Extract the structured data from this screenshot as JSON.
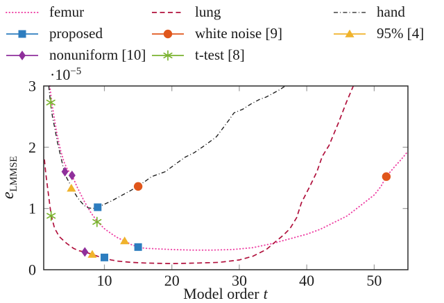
{
  "figure": {
    "kind": "error-vs-model-order-plot"
  },
  "chart_data": {
    "type": "line",
    "xlabel_main": "Model order",
    "xlabel_var": "t",
    "ylabel_var": "e",
    "ylabel_sub": "LMMSE",
    "y_exponent_prefix": "·10",
    "y_exponent_sup": "−5",
    "xlim": [
      1,
      55
    ],
    "ylim": [
      0,
      3
    ],
    "x_ticks": [
      10,
      20,
      30,
      40,
      50
    ],
    "y_ticks": [
      0,
      1,
      2,
      3
    ],
    "grid": false,
    "legend_position": "top-outside",
    "legend_order": [
      "femur",
      "proposed",
      "nonuniform",
      "lung",
      "white_noise",
      "t_test",
      "hand",
      "ninety_five"
    ],
    "series": [
      {
        "key": "femur",
        "label": "femur",
        "color": "#ee3da2",
        "style": "dotted",
        "marker": null,
        "points": [
          [
            1.9,
            3.0
          ],
          [
            2.2,
            2.72
          ],
          [
            2.6,
            2.45
          ],
          [
            3.0,
            2.2
          ],
          [
            3.5,
            1.95
          ],
          [
            4.0,
            1.76
          ],
          [
            4.5,
            1.64
          ],
          [
            5.2,
            1.54
          ],
          [
            6,
            1.34
          ],
          [
            7,
            1.12
          ],
          [
            8,
            0.93
          ],
          [
            9,
            0.78
          ],
          [
            10,
            0.67
          ],
          [
            11,
            0.59
          ],
          [
            12,
            0.52
          ],
          [
            13,
            0.47
          ],
          [
            14,
            0.41
          ],
          [
            15,
            0.37
          ],
          [
            16,
            0.35
          ],
          [
            18,
            0.34
          ],
          [
            20,
            0.33
          ],
          [
            23,
            0.32
          ],
          [
            26,
            0.32
          ],
          [
            29,
            0.33
          ],
          [
            32,
            0.36
          ],
          [
            35,
            0.43
          ],
          [
            37,
            0.49
          ],
          [
            40,
            0.58
          ],
          [
            42,
            0.66
          ],
          [
            44,
            0.77
          ],
          [
            46,
            0.88
          ],
          [
            48,
            1.05
          ],
          [
            50,
            1.22
          ],
          [
            51,
            1.36
          ],
          [
            51.8,
            1.52
          ],
          [
            53,
            1.68
          ],
          [
            54,
            1.8
          ],
          [
            54.9,
            1.92
          ]
        ]
      },
      {
        "key": "lung",
        "label": "lung",
        "color": "#b0103c",
        "style": "dashed",
        "marker": null,
        "points": [
          [
            1.1,
            1.8
          ],
          [
            1.3,
            1.58
          ],
          [
            1.6,
            1.32
          ],
          [
            1.85,
            1.1
          ],
          [
            2.1,
            0.89
          ],
          [
            2.6,
            0.68
          ],
          [
            3.3,
            0.54
          ],
          [
            4.4,
            0.43
          ],
          [
            5.4,
            0.35
          ],
          [
            6.2,
            0.31
          ],
          [
            7.1,
            0.29
          ],
          [
            8.2,
            0.25
          ],
          [
            9,
            0.22
          ],
          [
            10,
            0.19
          ],
          [
            11,
            0.16
          ],
          [
            12,
            0.14
          ],
          [
            14,
            0.12
          ],
          [
            16,
            0.11
          ],
          [
            20,
            0.1
          ],
          [
            24,
            0.11
          ],
          [
            27,
            0.12
          ],
          [
            30,
            0.16
          ],
          [
            32,
            0.22
          ],
          [
            34,
            0.33
          ],
          [
            35.5,
            0.47
          ],
          [
            36.5,
            0.56
          ],
          [
            37.5,
            0.67
          ],
          [
            38.5,
            0.85
          ],
          [
            39.2,
            1.09
          ],
          [
            40.5,
            1.37
          ],
          [
            41.5,
            1.6
          ],
          [
            42.3,
            1.85
          ],
          [
            43.3,
            2.03
          ],
          [
            44.7,
            2.4
          ],
          [
            45.9,
            2.74
          ],
          [
            46.9,
            3.0
          ]
        ]
      },
      {
        "key": "hand",
        "label": "hand",
        "color": "#1c1c1c",
        "style": "dashdot",
        "marker": null,
        "points": [
          [
            1.75,
            3.0
          ],
          [
            2.0,
            2.73
          ],
          [
            2.3,
            2.5
          ],
          [
            2.7,
            2.28
          ],
          [
            3.0,
            2.1
          ],
          [
            3.5,
            1.86
          ],
          [
            4.0,
            1.62
          ],
          [
            4.4,
            1.5
          ],
          [
            5.0,
            1.38
          ],
          [
            5.5,
            1.27
          ],
          [
            6.0,
            1.18
          ],
          [
            6.5,
            1.11
          ],
          [
            7.0,
            1.05
          ],
          [
            7.6,
            1.01
          ],
          [
            8.3,
            1.0
          ],
          [
            9.0,
            1.02
          ],
          [
            10,
            1.07
          ],
          [
            11,
            1.12
          ],
          [
            12,
            1.18
          ],
          [
            13,
            1.24
          ],
          [
            14,
            1.3
          ],
          [
            15,
            1.37
          ],
          [
            16,
            1.44
          ],
          [
            17,
            1.52
          ],
          [
            18,
            1.56
          ],
          [
            19,
            1.6
          ],
          [
            20,
            1.68
          ],
          [
            21,
            1.76
          ],
          [
            22,
            1.84
          ],
          [
            23.3,
            1.91
          ],
          [
            24.5,
            2.0
          ],
          [
            25.5,
            2.08
          ],
          [
            26.6,
            2.17
          ],
          [
            27.5,
            2.3
          ],
          [
            28.5,
            2.45
          ],
          [
            29.2,
            2.56
          ],
          [
            30.5,
            2.62
          ],
          [
            31.8,
            2.71
          ],
          [
            33,
            2.78
          ],
          [
            34,
            2.82
          ],
          [
            35,
            2.88
          ],
          [
            36,
            2.94
          ],
          [
            36.8,
            3.0
          ]
        ]
      },
      {
        "key": "proposed",
        "label": "proposed",
        "color": "#2d7dbf",
        "style": "solid",
        "marker": "square",
        "points": [
          [
            9,
            1.02
          ],
          [
            10,
            0.2
          ],
          [
            15,
            0.37
          ]
        ]
      },
      {
        "key": "nonuniform",
        "label": "nonuniform [10]",
        "color": "#8f2f9b",
        "style": "solid",
        "marker": "diamond",
        "points": [
          [
            4.15,
            1.6
          ],
          [
            5.2,
            1.54
          ],
          [
            7.1,
            0.29
          ]
        ]
      },
      {
        "key": "white_noise",
        "label": "white noise [9]",
        "color": "#e0561b",
        "style": "solid",
        "marker": "circle",
        "points": [
          [
            15,
            1.36
          ],
          [
            51.8,
            1.52
          ]
        ]
      },
      {
        "key": "t_test",
        "label": "t-test [8]",
        "color": "#7ab32f",
        "style": "solid",
        "marker": "star",
        "points": [
          [
            2.05,
            2.73
          ],
          [
            2.1,
            0.88
          ],
          [
            8.9,
            0.78
          ]
        ]
      },
      {
        "key": "ninety_five",
        "label": "95% [4]",
        "color": "#f0b32c",
        "style": "solid",
        "marker": "triangle",
        "points": [
          [
            5.1,
            1.33
          ],
          [
            8.2,
            0.25
          ],
          [
            13,
            0.47
          ]
        ]
      }
    ]
  }
}
